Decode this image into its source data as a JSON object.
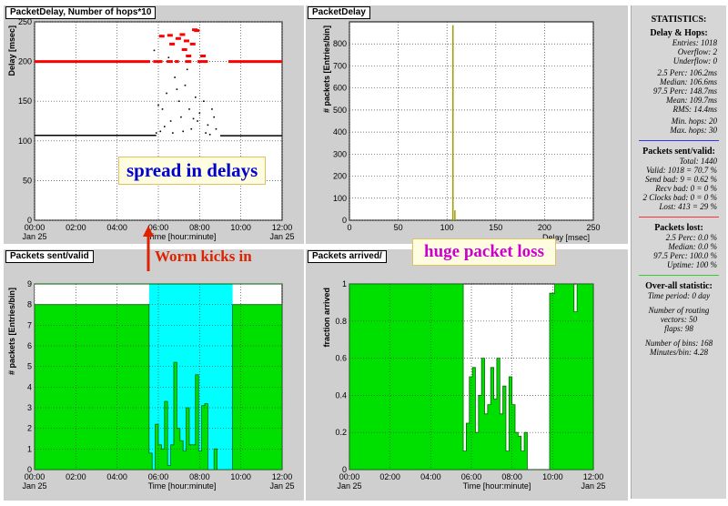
{
  "panels": {
    "delay_hops": {
      "title": "PacketDelay, Number of hops*10"
    },
    "delay_hist": {
      "title": "PacketDelay"
    },
    "sent_valid": {
      "title": "Packets sent/valid"
    },
    "arrived": {
      "title": "Packets arrived/"
    }
  },
  "annotations": {
    "spread": "spread in delays",
    "worm": "Worm kicks in",
    "loss": "huge packet loss"
  },
  "colors": {
    "green": "#00e000",
    "cyan": "#00ffff",
    "red": "#ff0000",
    "olive": "#a0a000",
    "blue": "#0000cc",
    "annotation_red": "#dd2200",
    "annotation_purple": "#cc00cc"
  },
  "stats": {
    "header": "STATISTICS:",
    "delay_hops": {
      "title": "Delay & Hops:",
      "entries": "Entries: 1018",
      "overflow": "Overflow: 2",
      "underflow": "Underflow: 0",
      "p25": "2.5 Perc:   106.2ms",
      "median": "Median:   106.6ms",
      "p975": "97.5 Perc:   148.7ms",
      "mean": "Mean:   109.7ms",
      "rms": "RMS:   14.4ms",
      "min_hops": "Min. hops: 20",
      "max_hops": "Max. hops: 30"
    },
    "sent_valid": {
      "title": "Packets sent/valid:",
      "total": "Total: 1440",
      "valid": "Valid: 1018 = 70.7 %",
      "send_bad": "Send bad: 9 = 0.62 %",
      "recv_bad": "Recv bad: 0 = 0 %",
      "clocks_bad": "2 Clocks bad: 0 = 0 %",
      "lost": "Lost: 413 = 29 %"
    },
    "lost": {
      "title": "Packets lost:",
      "p25": "2.5 Perc:   0.0 %",
      "median": "Median:   0.0 %",
      "p975": "97.5 Perc:   100.0 %",
      "uptime": "Uptime: 100 %"
    },
    "overall": {
      "title": "Over-all statistic:",
      "period": "Time period: 0 day",
      "routing1": "Number of routing",
      "routing2": "vectors: 50",
      "flaps": "flaps: 98",
      "bins": "Number of bins: 168",
      "minbin": "Minutes/bin: 4.28"
    }
  },
  "chart_data": [
    {
      "type": "scatter",
      "title": "PacketDelay, Number of hops*10",
      "xlabel": "Time [hour:minute]",
      "ylabel": "Delay [msec]",
      "x_ticks": [
        "00:00",
        "02:00",
        "04:00",
        "06:00",
        "08:00",
        "10:00",
        "12:00"
      ],
      "x_sublabel": "Jan 25",
      "ylim": [
        0,
        250
      ],
      "y_ticks": [
        0,
        50,
        100,
        150,
        200,
        250
      ],
      "series": [
        {
          "name": "Number of hops*10",
          "color": "#ff0000",
          "segments": [
            [
              0,
              5.6,
              200
            ],
            [
              5.75,
              6.2,
              200
            ],
            [
              6.4,
              6.7,
              200
            ],
            [
              6.8,
              7.0,
              200
            ],
            [
              7.3,
              7.6,
              200
            ],
            [
              7.9,
              8.4,
              200
            ],
            [
              9.4,
              12,
              200
            ]
          ],
          "points": [
            [
              6.5,
              233
            ],
            [
              7.1,
              234
            ],
            [
              7.3,
              226
            ],
            [
              7.7,
              240
            ],
            [
              7.8,
              239
            ],
            [
              6.6,
              222
            ],
            [
              7.2,
              215
            ],
            [
              7.4,
              207
            ],
            [
              8.1,
              207
            ],
            [
              6.1,
              232
            ],
            [
              6.9,
              229
            ],
            [
              7.6,
              222
            ]
          ]
        },
        {
          "name": "Delay",
          "color": "#000000",
          "segments": [
            [
              0,
              5.9,
              107
            ],
            [
              9.0,
              12,
              106.5
            ]
          ],
          "points": [
            [
              6.2,
              140
            ],
            [
              6.4,
              160
            ],
            [
              6.6,
              125
            ],
            [
              6.8,
              180
            ],
            [
              7.0,
              150
            ],
            [
              7.1,
              130
            ],
            [
              7.3,
              170
            ],
            [
              7.5,
              140
            ],
            [
              7.6,
              115
            ],
            [
              7.8,
              155
            ],
            [
              8.0,
              135
            ],
            [
              8.2,
              150
            ],
            [
              8.4,
              120
            ],
            [
              8.6,
              140
            ],
            [
              8.8,
              115
            ],
            [
              6.3,
              118
            ],
            [
              6.7,
              110
            ],
            [
              7.2,
              112
            ],
            [
              7.9,
              125
            ],
            [
              8.3,
              110
            ],
            [
              6.9,
              165
            ],
            [
              7.4,
              190
            ],
            [
              6.5,
              205
            ],
            [
              5.8,
              214
            ],
            [
              8.7,
              130
            ],
            [
              6.1,
              112
            ],
            [
              7.7,
              128
            ],
            [
              5.9,
              110
            ],
            [
              8.5,
              108
            ],
            [
              6.0,
              145
            ]
          ]
        }
      ]
    },
    {
      "type": "bar",
      "title": "PacketDelay",
      "xlabel": "Delay [msec]",
      "ylabel": "# packets [Entries/bin]",
      "xlim": [
        0,
        250
      ],
      "x_ticks": [
        0,
        50,
        100,
        150,
        200,
        250
      ],
      "ylim": [
        0,
        900
      ],
      "y_ticks": [
        0,
        100,
        200,
        300,
        400,
        500,
        600,
        700,
        800
      ],
      "bars": [
        {
          "x": 106,
          "value": 885,
          "color": "#a0a000"
        },
        {
          "x": 108,
          "value": 45,
          "color": "#a0a000"
        }
      ]
    },
    {
      "type": "area",
      "title": "Packets sent/valid",
      "xlabel": "Time [hour:minute]",
      "ylabel": "# packets [Entries/bin]",
      "x_ticks": [
        "00:00",
        "02:00",
        "04:00",
        "06:00",
        "08:00",
        "10:00",
        "12:00"
      ],
      "x_sublabel": "Jan 25",
      "ylim": [
        0,
        9
      ],
      "y_ticks": [
        0,
        1,
        2,
        3,
        4,
        5,
        6,
        7,
        8,
        9
      ],
      "series": [
        {
          "name": "sent",
          "color": "#00ffff",
          "steps": [
            [
              0,
              9
            ],
            [
              5.55,
              9
            ],
            [
              9.6,
              9
            ],
            [
              12,
              9
            ]
          ]
        },
        {
          "name": "valid",
          "color": "#00e000",
          "steps": [
            [
              0,
              8
            ],
            [
              5.55,
              0.8
            ],
            [
              5.7,
              0
            ],
            [
              5.85,
              2.2
            ],
            [
              6.0,
              1.2
            ],
            [
              6.15,
              1
            ],
            [
              6.3,
              3.3
            ],
            [
              6.45,
              0.2
            ],
            [
              6.6,
              1.2
            ],
            [
              6.75,
              5.2
            ],
            [
              6.9,
              2
            ],
            [
              7.05,
              1.4
            ],
            [
              7.2,
              0.9
            ],
            [
              7.35,
              3
            ],
            [
              7.5,
              1.2
            ],
            [
              7.65,
              1.2
            ],
            [
              7.8,
              4.6
            ],
            [
              7.95,
              0.9
            ],
            [
              8.1,
              3.1
            ],
            [
              8.25,
              3.2
            ],
            [
              8.4,
              0
            ],
            [
              8.55,
              0
            ],
            [
              8.7,
              1
            ],
            [
              8.85,
              0
            ],
            [
              9.0,
              0
            ],
            [
              9.6,
              8
            ],
            [
              12,
              8
            ]
          ]
        }
      ]
    },
    {
      "type": "area",
      "title": "Packets arrived/",
      "xlabel": "Time [hour:minute]",
      "ylabel": "fraction arrived",
      "x_ticks": [
        "00:00",
        "02:00",
        "04:00",
        "06:00",
        "08:00",
        "10:00",
        "12:00"
      ],
      "x_sublabel": "Jan 25",
      "ylim": [
        0,
        1
      ],
      "y_ticks": [
        0,
        0.2,
        0.4,
        0.6,
        0.8,
        1
      ],
      "series": [
        {
          "name": "fraction arrived",
          "color": "#00e000",
          "steps": [
            [
              0,
              1
            ],
            [
              5.6,
              0.1
            ],
            [
              5.75,
              0.25
            ],
            [
              5.9,
              0.5
            ],
            [
              6.05,
              0.55
            ],
            [
              6.2,
              0.2
            ],
            [
              6.35,
              0.4
            ],
            [
              6.5,
              0.6
            ],
            [
              6.65,
              0.3
            ],
            [
              6.8,
              0.35
            ],
            [
              6.95,
              0.55
            ],
            [
              7.1,
              0.38
            ],
            [
              7.25,
              0.6
            ],
            [
              7.4,
              0.3
            ],
            [
              7.55,
              0.45
            ],
            [
              7.7,
              0.1
            ],
            [
              7.85,
              0.5
            ],
            [
              8.0,
              0.35
            ],
            [
              8.15,
              0.2
            ],
            [
              8.3,
              0.18
            ],
            [
              8.45,
              0.1
            ],
            [
              8.6,
              0.2
            ],
            [
              8.75,
              0
            ],
            [
              9.6,
              0
            ],
            [
              9.85,
              0.95
            ],
            [
              10.1,
              1
            ],
            [
              11.05,
              0.85
            ],
            [
              11.2,
              1
            ],
            [
              12,
              1
            ]
          ]
        }
      ]
    }
  ]
}
